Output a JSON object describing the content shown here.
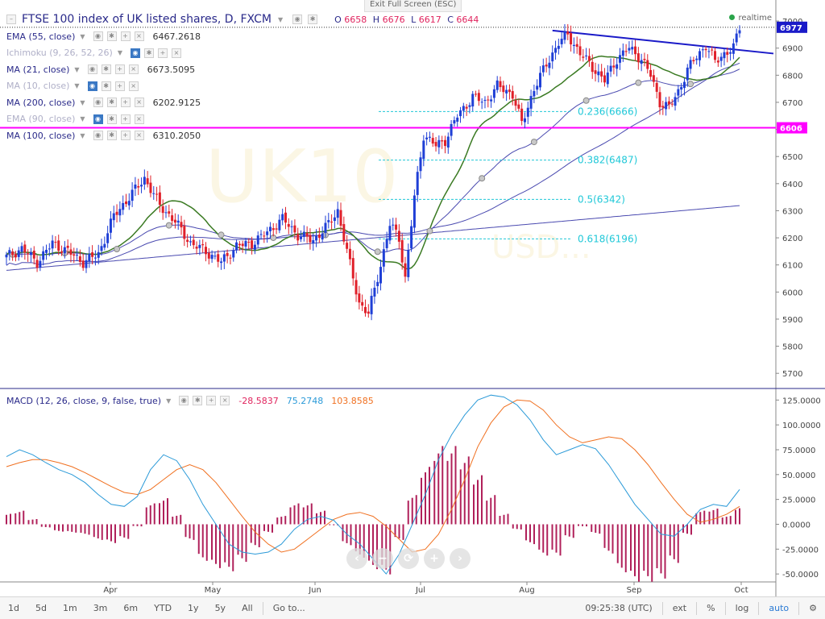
{
  "header": {
    "exit_fullscreen": "Exit Full Screen (ESC)",
    "title": "FTSE 100 index of UK listed shares, D, FXCM",
    "ohlc": {
      "o_label": "O",
      "o": "6658",
      "h_label": "H",
      "h": "6676",
      "l_label": "L",
      "l": "6617",
      "c_label": "C",
      "c": "6644"
    },
    "realtime": "realtime"
  },
  "indicators": [
    {
      "name": "EMA (55, close)",
      "value": "6467.2618",
      "dim": false,
      "eye": false
    },
    {
      "name": "Ichimoku (9, 26, 52, 26)",
      "value": "",
      "dim": true,
      "eye": true
    },
    {
      "name": "MA (21, close)",
      "value": "6673.5095",
      "dim": false,
      "eye": false
    },
    {
      "name": "MA (10, close)",
      "value": "",
      "dim": true,
      "eye": true
    },
    {
      "name": "MA (200, close)",
      "value": "6202.9125",
      "dim": false,
      "eye": false
    },
    {
      "name": "EMA (90, close)",
      "value": "",
      "dim": true,
      "eye": true
    },
    {
      "name": "MA (100, close)",
      "value": "6310.2050",
      "dim": false,
      "eye": false
    }
  ],
  "macd_legend": {
    "name": "MACD (12, 26, close, 9, false, true)",
    "hist": "-28.5837",
    "macd": "75.2748",
    "signal": "103.8585"
  },
  "watermark": {
    "symbol": "UK10",
    "suffix": "USD..."
  },
  "colors": {
    "up": "#1f3fd6",
    "down": "#e0202a",
    "ma21": "#3a7a22",
    "ma": "#4a4ab0",
    "macd": "#2b9ad8",
    "signal": "#f07020",
    "hist": "#b0205a",
    "fib": "#20c8d8",
    "magenta": "#ff00ff",
    "trend": "#1a1ac8"
  },
  "chart_data": [
    {
      "type": "candlestick",
      "title": "FTSE 100 index of UK listed shares, D, FXCM",
      "ylim": [
        5650,
        7030
      ],
      "y_ticks": [
        5700,
        5800,
        5900,
        6000,
        6100,
        6200,
        6300,
        6400,
        6500,
        6600,
        6700,
        6800,
        6900,
        7000
      ],
      "y_tick_labels": [
        "5700",
        "5800",
        "5900",
        "6000",
        "6100",
        "6200",
        "6300",
        "6400",
        "6500",
        "6600",
        "6700",
        "6800",
        "6900",
        "7000"
      ],
      "x_labels": [
        "Apr",
        "May",
        "Jun",
        "Jul",
        "Aug",
        "Sep",
        "Oct"
      ],
      "price_markers": [
        {
          "label": "6977",
          "value": 6977,
          "color": "#1a1ac8"
        },
        {
          "label": "6606",
          "value": 6606,
          "color": "#ff00ff"
        }
      ],
      "fib_levels": [
        {
          "label": "0.236(6666)",
          "value": 6666
        },
        {
          "label": "0.382(6487)",
          "value": 6487
        },
        {
          "label": "0.5(6342)",
          "value": 6342
        },
        {
          "label": "0.618(6196)",
          "value": 6196
        }
      ],
      "horizontal_line": 6606,
      "anchors": [
        [
          0,
          6130
        ],
        [
          5,
          6160
        ],
        [
          10,
          6110
        ],
        [
          15,
          6180
        ],
        [
          20,
          6150
        ],
        [
          25,
          6110
        ],
        [
          30,
          6140
        ],
        [
          35,
          6280
        ],
        [
          40,
          6350
        ],
        [
          45,
          6420
        ],
        [
          50,
          6320
        ],
        [
          55,
          6260
        ],
        [
          60,
          6180
        ],
        [
          65,
          6150
        ],
        [
          70,
          6110
        ],
        [
          75,
          6170
        ],
        [
          80,
          6180
        ],
        [
          85,
          6220
        ],
        [
          90,
          6270
        ],
        [
          95,
          6210
        ],
        [
          100,
          6190
        ],
        [
          105,
          6250
        ],
        [
          108,
          6300
        ],
        [
          112,
          6100
        ],
        [
          115,
          5960
        ],
        [
          118,
          5920
        ],
        [
          122,
          6100
        ],
        [
          125,
          6250
        ],
        [
          128,
          6200
        ],
        [
          130,
          6050
        ],
        [
          133,
          6350
        ],
        [
          136,
          6580
        ],
        [
          140,
          6540
        ],
        [
          143,
          6560
        ],
        [
          147,
          6650
        ],
        [
          152,
          6720
        ],
        [
          156,
          6700
        ],
        [
          160,
          6760
        ],
        [
          165,
          6730
        ],
        [
          168,
          6620
        ],
        [
          172,
          6750
        ],
        [
          176,
          6840
        ],
        [
          180,
          6920
        ],
        [
          183,
          6950
        ],
        [
          187,
          6880
        ],
        [
          191,
          6830
        ],
        [
          195,
          6780
        ],
        [
          199,
          6860
        ],
        [
          203,
          6900
        ],
        [
          207,
          6860
        ],
        [
          210,
          6800
        ],
        [
          213,
          6700
        ],
        [
          216,
          6680
        ],
        [
          219,
          6740
        ],
        [
          222,
          6820
        ],
        [
          225,
          6870
        ],
        [
          228,
          6910
        ],
        [
          231,
          6850
        ],
        [
          234,
          6880
        ],
        [
          237,
          6900
        ],
        [
          239,
          6977
        ]
      ],
      "ohlc_last": {
        "o": 6658,
        "h": 6676,
        "l": 6617,
        "c": 6644
      }
    },
    {
      "type": "line",
      "title": "MACD (12, 26, close, 9, false, true)",
      "ylim": [
        -58,
        135
      ],
      "y_ticks": [
        -50,
        -25,
        0,
        25,
        50,
        75,
        100,
        125
      ],
      "y_tick_labels": [
        "-50.0000",
        "-25.0000",
        "0.0000",
        "25.0000",
        "50.0000",
        "75.0000",
        "100.0000",
        "125.0000"
      ],
      "series": [
        {
          "name": "MACD",
          "values": [
            68,
            75,
            70,
            62,
            55,
            50,
            42,
            30,
            20,
            18,
            28,
            55,
            70,
            64,
            45,
            20,
            0,
            -20,
            -28,
            -30,
            -28,
            -20,
            -5,
            5,
            8,
            4,
            -10,
            -20,
            -35,
            -50,
            -30,
            0,
            30,
            65,
            90,
            110,
            125,
            130,
            128,
            120,
            105,
            85,
            70,
            75,
            80,
            76,
            60,
            40,
            20,
            5,
            -10,
            -12,
            0,
            15,
            20,
            18,
            35
          ]
        },
        {
          "name": "Signal",
          "values": [
            58,
            62,
            65,
            65,
            62,
            58,
            52,
            45,
            38,
            32,
            30,
            35,
            45,
            55,
            60,
            55,
            42,
            25,
            8,
            -8,
            -20,
            -28,
            -25,
            -15,
            -5,
            5,
            10,
            12,
            8,
            -2,
            -15,
            -28,
            -25,
            -10,
            15,
            45,
            78,
            102,
            118,
            125,
            124,
            115,
            100,
            88,
            82,
            85,
            88,
            86,
            75,
            60,
            42,
            25,
            10,
            2,
            5,
            10,
            18
          ]
        }
      ]
    }
  ]
}
